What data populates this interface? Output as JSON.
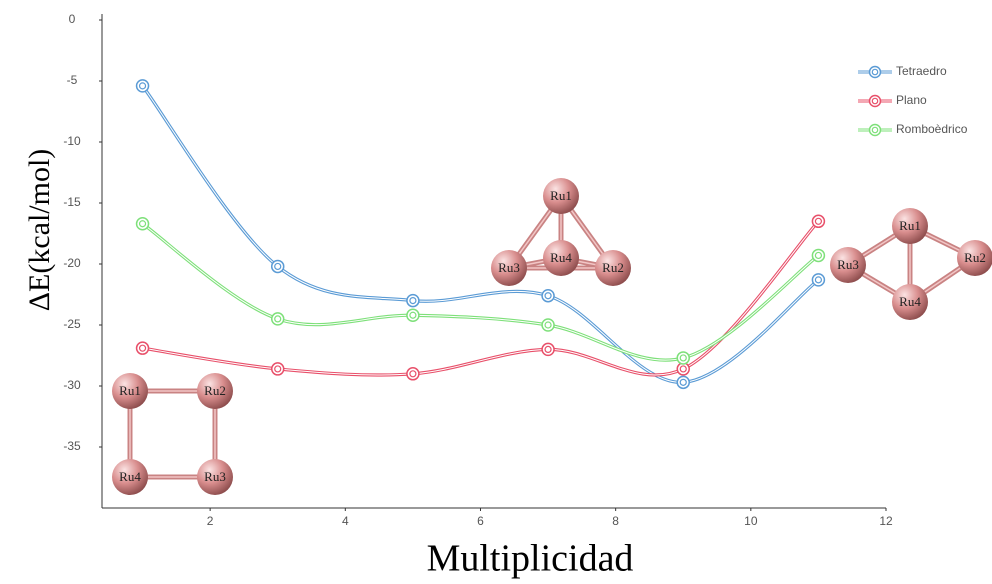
{
  "chart_data": {
    "type": "line",
    "x_label": "Multiplicidad",
    "y_label": "ΔE(kcal/mol)",
    "x": [
      1,
      3,
      5,
      7,
      9,
      11
    ],
    "series": [
      {
        "name": "Tetraedro",
        "color": "#5b9bd5",
        "values": [
          -5.4,
          -20.2,
          -23.0,
          -22.6,
          -29.7,
          -21.3
        ]
      },
      {
        "name": "Plano",
        "color": "#e8506a",
        "values": [
          -26.9,
          -28.6,
          -29.0,
          -27.0,
          -28.6,
          -16.5
        ]
      },
      {
        "name": "Romboèdrico",
        "color": "#7ee07a",
        "values": [
          -16.7,
          -24.5,
          -24.2,
          -25.0,
          -27.7,
          -19.3
        ]
      }
    ],
    "xlim": [
      0.4,
      12
    ],
    "xticks": [
      2,
      4,
      6,
      8,
      10,
      12
    ],
    "ylim": [
      -40,
      0
    ],
    "yticks": [
      0,
      -5,
      -10,
      -15,
      -20,
      -25,
      -30,
      -35
    ],
    "legend": "upper right",
    "smooth": true,
    "molecules": [
      [
        "Ru1",
        "Ru2",
        "Ru4",
        "Ru3"
      ],
      [
        "Ru1",
        "Ru3",
        "Ru2",
        "Ru4"
      ],
      [
        "Ru1",
        "Ru3",
        "Ru2",
        "Ru4"
      ]
    ]
  }
}
